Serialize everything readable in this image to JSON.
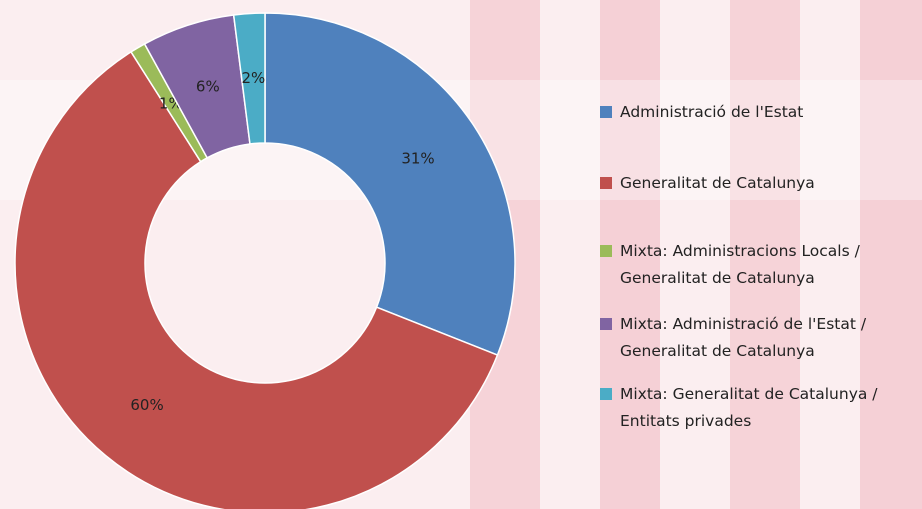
{
  "chart_data": {
    "type": "donut",
    "categories": [
      "Administració de l'Estat",
      "Generalitat de Catalunya",
      "Mixta: Administracions Locals / Generalitat de Catalunya",
      "Mixta: Administració de l'Estat / Generalitat de Catalunya",
      "Mixta: Generalitat de Catalunya / Entitats privades"
    ],
    "values": [
      31,
      60,
      1,
      6,
      2
    ],
    "value_labels": [
      "31%",
      "60%",
      "1%",
      "6%",
      "2%"
    ],
    "colors": [
      "#4f81bd",
      "#c0504d",
      "#9bbb59",
      "#8064a2",
      "#4bacc6"
    ],
    "legend": "right"
  }
}
